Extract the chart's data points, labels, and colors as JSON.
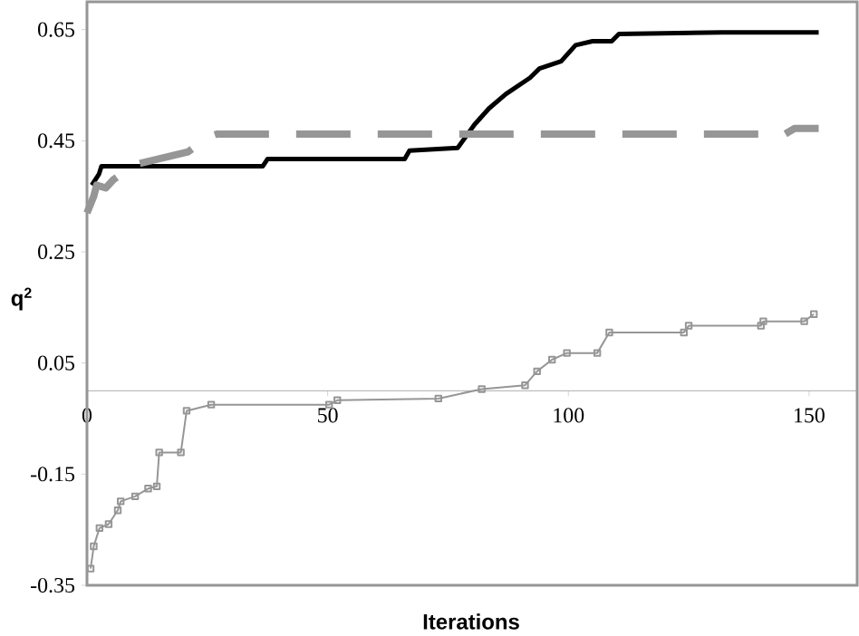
{
  "chart_data": {
    "type": "line",
    "xlabel": "Iterations",
    "ylabel": "q$^{2}$",
    "xlim": [
      0,
      160
    ],
    "ylim": [
      -0.35,
      0.7
    ],
    "xticks": [
      0,
      50,
      100,
      150
    ],
    "yticks": [
      -0.35,
      -0.15,
      0.05,
      0.25,
      0.45,
      0.65
    ],
    "series": [
      {
        "color": "#000000",
        "line_style": "solid",
        "x": [
          1,
          2.5,
          3,
          36.5,
          37.5,
          66,
          67,
          77,
          80.5,
          83.5,
          87,
          92,
          94,
          98.5,
          101.5,
          105,
          109,
          110.5,
          132,
          152
        ],
        "values": [
          0.37,
          0.39,
          0.404,
          0.404,
          0.417,
          0.417,
          0.432,
          0.437,
          0.479,
          0.508,
          0.534,
          0.563,
          0.58,
          0.593,
          0.622,
          0.629,
          0.629,
          0.642,
          0.645,
          0.645
        ]
      },
      {
        "color": "#969696",
        "line_style": "dashed",
        "x": [
          0,
          1.4,
          2,
          3.9,
          5.5,
          10,
          21,
          25,
          27,
          145,
          147,
          152
        ],
        "values": [
          0.32,
          0.35,
          0.37,
          0.365,
          0.38,
          0.407,
          0.43,
          0.456,
          0.462,
          0.462,
          0.472,
          0.472
        ]
      },
      {
        "color": "#969696",
        "line_style": "solid",
        "marker": "square",
        "x": [
          0.75,
          1.4,
          2.6,
          4.5,
          6.4,
          7,
          10,
          12.7,
          14.5,
          15,
          19.5,
          20.7,
          25.8,
          50.3,
          52,
          73,
          82,
          91,
          93.5,
          96.6,
          99.7,
          106,
          108.5,
          124,
          125,
          140,
          140.5,
          149,
          151
        ],
        "values": [
          -0.32,
          -0.28,
          -0.247,
          -0.24,
          -0.215,
          -0.199,
          -0.19,
          -0.176,
          -0.172,
          -0.111,
          -0.111,
          -0.036,
          -0.025,
          -0.025,
          -0.017,
          -0.014,
          0.003,
          0.01,
          0.035,
          0.056,
          0.068,
          0.068,
          0.105,
          0.105,
          0.117,
          0.117,
          0.125,
          0.125,
          0.138
        ]
      }
    ]
  }
}
